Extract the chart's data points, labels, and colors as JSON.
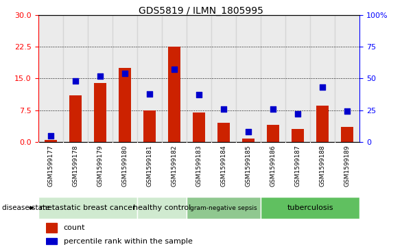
{
  "title": "GDS5819 / ILMN_1805995",
  "samples": [
    "GSM1599177",
    "GSM1599178",
    "GSM1599179",
    "GSM1599180",
    "GSM1599181",
    "GSM1599182",
    "GSM1599183",
    "GSM1599184",
    "GSM1599185",
    "GSM1599186",
    "GSM1599187",
    "GSM1599188",
    "GSM1599189"
  ],
  "counts": [
    0.5,
    11.0,
    14.0,
    17.5,
    7.5,
    22.5,
    7.0,
    4.5,
    0.8,
    4.0,
    3.0,
    8.5,
    3.5
  ],
  "percentiles": [
    5,
    48,
    52,
    54,
    38,
    57,
    37,
    26,
    8,
    26,
    22,
    43,
    24
  ],
  "disease_groups": [
    {
      "label": "metastatic breast cancer",
      "start": 0,
      "end": 4,
      "color": "#d0ead0"
    },
    {
      "label": "healthy control",
      "start": 4,
      "end": 6,
      "color": "#d0ead0"
    },
    {
      "label": "gram-negative sepsis",
      "start": 6,
      "end": 9,
      "color": "#90c890"
    },
    {
      "label": "tuberculosis",
      "start": 9,
      "end": 13,
      "color": "#60c060"
    }
  ],
  "ylim_left": [
    0,
    30
  ],
  "ylim_right": [
    0,
    100
  ],
  "yticks_left": [
    0,
    7.5,
    15,
    22.5,
    30
  ],
  "yticks_right": [
    0,
    25,
    50,
    75,
    100
  ],
  "bar_color": "#cc2200",
  "dot_color": "#0000cc",
  "col_bg_color": "#c8c8c8",
  "plot_bg_color": "#ffffff",
  "legend_count_color": "#cc2200",
  "legend_pct_color": "#0000cc",
  "bar_width": 0.5,
  "dot_size": 30
}
